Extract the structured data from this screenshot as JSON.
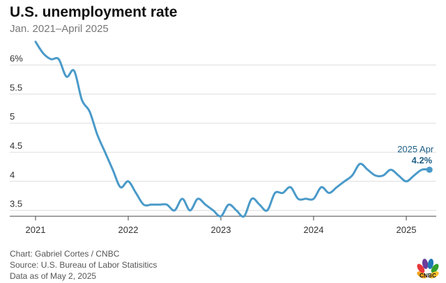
{
  "header": {
    "title": "U.S. unemployment rate",
    "subtitle": "Jan. 2021–April 2025"
  },
  "footer": {
    "credit": "Chart: Gabriel Cortes / CNBC",
    "source": "Source: U.S. Bureau of Labor Statisitics",
    "date_note": "Data as of May 2, 2025"
  },
  "logo": {
    "text": "CNBC",
    "icon": "peacock-icon"
  },
  "colors": {
    "line": "#4a9ac9",
    "annotation": "#1e5f86",
    "grid": "#dddddd",
    "baseline": "#444444"
  },
  "chart_data": {
    "type": "line",
    "title": "U.S. unemployment rate",
    "subtitle": "Jan. 2021–April 2025",
    "x_ticks": [
      "2021",
      "2022",
      "2023",
      "2024",
      "2025"
    ],
    "y_ticks": [
      "3.5",
      "4",
      "4.5",
      "5",
      "5.5",
      "6%"
    ],
    "y_tick_values": [
      3.5,
      4,
      4.5,
      5,
      5.5,
      6
    ],
    "ylim": [
      3.4,
      6.4
    ],
    "grid": true,
    "series": [
      {
        "x": [
          "2021-01",
          "2021-02",
          "2021-03",
          "2021-04",
          "2021-05",
          "2021-06",
          "2021-07",
          "2021-08",
          "2021-09",
          "2021-10",
          "2021-11",
          "2021-12",
          "2022-01",
          "2022-02",
          "2022-03",
          "2022-04",
          "2022-05",
          "2022-06",
          "2022-07",
          "2022-08",
          "2022-09",
          "2022-10",
          "2022-11",
          "2022-12",
          "2023-01",
          "2023-02",
          "2023-03",
          "2023-04",
          "2023-05",
          "2023-06",
          "2023-07",
          "2023-08",
          "2023-09",
          "2023-10",
          "2023-11",
          "2023-12",
          "2024-01",
          "2024-02",
          "2024-03",
          "2024-04",
          "2024-05",
          "2024-06",
          "2024-07",
          "2024-08",
          "2024-09",
          "2024-10",
          "2024-11",
          "2024-12",
          "2025-01",
          "2025-02",
          "2025-03",
          "2025-04"
        ],
        "values": [
          6.4,
          6.2,
          6.1,
          6.1,
          5.8,
          5.9,
          5.4,
          5.2,
          4.8,
          4.5,
          4.2,
          3.9,
          4.0,
          3.8,
          3.6,
          3.6,
          3.6,
          3.6,
          3.5,
          3.7,
          3.5,
          3.7,
          3.6,
          3.5,
          3.4,
          3.6,
          3.5,
          3.4,
          3.7,
          3.6,
          3.5,
          3.8,
          3.8,
          3.9,
          3.7,
          3.7,
          3.7,
          3.9,
          3.8,
          3.9,
          4.0,
          4.1,
          4.3,
          4.2,
          4.1,
          4.1,
          4.2,
          4.1,
          4.0,
          4.1,
          4.2,
          4.2
        ]
      }
    ],
    "annotation": {
      "label": "2025 Apr",
      "value": "4.2%",
      "x": "2025-04",
      "y": 4.2
    }
  }
}
